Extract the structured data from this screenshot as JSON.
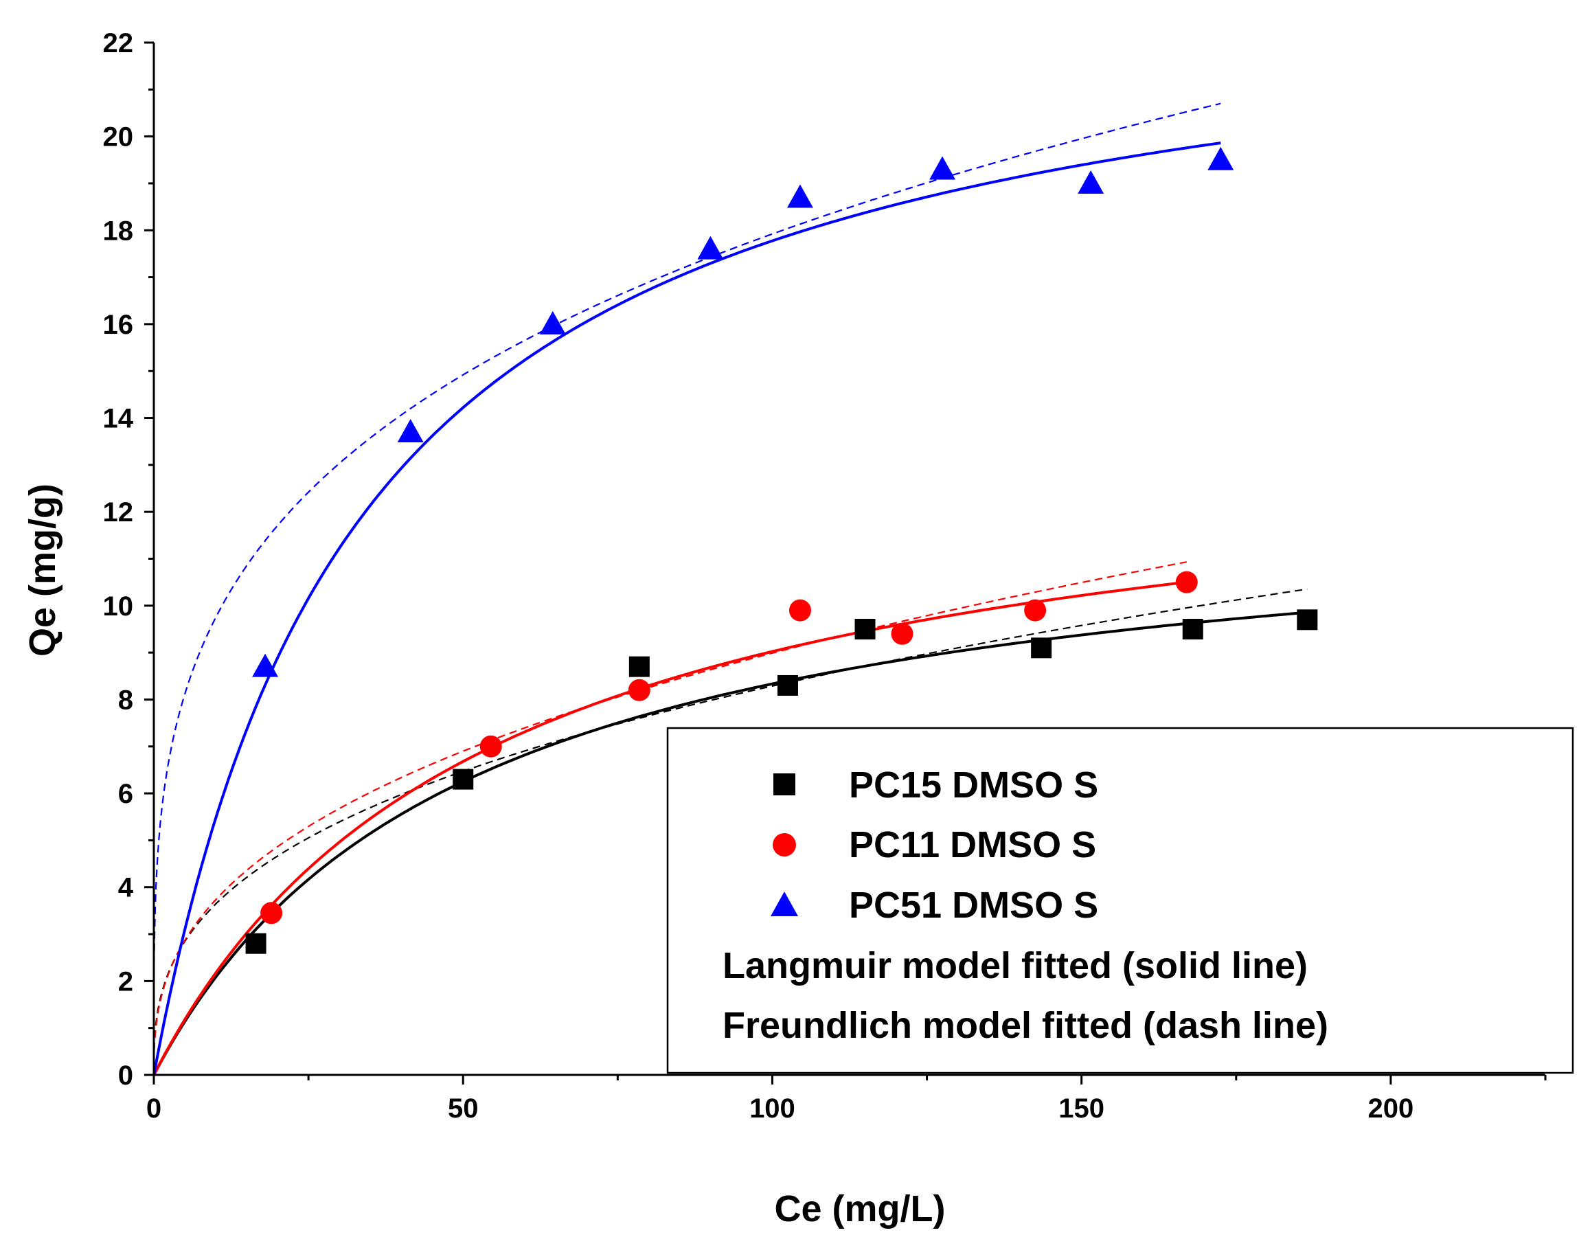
{
  "chart_data": {
    "type": "scatter",
    "title": "",
    "xlabel": "Ce (mg/L)",
    "ylabel": "Qe (mg/g)",
    "xlim": [
      0,
      225
    ],
    "ylim": [
      0,
      22
    ],
    "x_ticks": [
      0,
      50,
      100,
      150,
      200
    ],
    "y_ticks": [
      0,
      2,
      4,
      6,
      8,
      10,
      12,
      14,
      16,
      18,
      20,
      22
    ],
    "x_tick_labels": [
      "0",
      "50",
      "100",
      "150",
      "200"
    ],
    "y_tick_labels": [
      "0",
      "2",
      "4",
      "6",
      "8",
      "10",
      "12",
      "14",
      "16",
      "18",
      "20",
      "22"
    ],
    "legend_position": "bottom-right",
    "series": [
      {
        "name": "PC15 DMSO S",
        "color": "#000000",
        "marker": "square",
        "x": [
          16.5,
          50,
          78.5,
          102.5,
          115,
          143.5,
          168,
          186.5
        ],
        "y": [
          2.8,
          6.3,
          8.7,
          8.3,
          9.5,
          9.1,
          9.5,
          9.7
        ],
        "langmuir": {
          "qmax": 12.5,
          "kl": 0.02,
          "x_end": 186.5
        },
        "freundlich": {
          "kf": 1.6,
          "n": 2.8,
          "x_end": 186.5
        }
      },
      {
        "name": "PC11 DMSO S",
        "color": "#ff0000",
        "marker": "circle",
        "x": [
          19,
          54.5,
          78.5,
          104.5,
          121,
          142.5,
          167
        ],
        "y": [
          3.45,
          7.0,
          8.2,
          9.9,
          9.4,
          9.9,
          10.5
        ],
        "langmuir": {
          "qmax": 13.9,
          "kl": 0.0185,
          "x_end": 167
        },
        "freundlich": {
          "kf": 1.55,
          "n": 2.62,
          "x_end": 167
        }
      },
      {
        "name": "PC51 DMSO S",
        "color": "#0000ff",
        "marker": "triangle",
        "x": [
          18,
          41.5,
          64.5,
          90,
          104.5,
          127.5,
          151.5,
          172.5
        ],
        "y": [
          8.7,
          13.7,
          16.0,
          17.6,
          18.7,
          19.3,
          19.0,
          19.5
        ],
        "langmuir": {
          "qmax": 23.7,
          "kl": 0.03,
          "x_end": 172.5
        },
        "freundlich": {
          "kf": 5.3,
          "n": 3.78,
          "x_end": 172.5
        }
      }
    ],
    "legend_notes": [
      "Langmuir model fitted (solid line)",
      "Freundlich model fitted (dash line)"
    ]
  }
}
